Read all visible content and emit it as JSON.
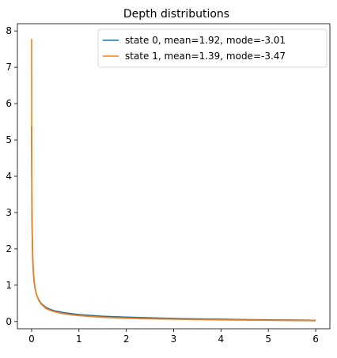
{
  "chart_data": {
    "type": "line",
    "title": "Depth distributions",
    "xlabel": "",
    "ylabel": "",
    "xlim": [
      -0.3,
      6.3
    ],
    "ylim": [
      -0.2,
      8.2
    ],
    "xticks": [
      0,
      1,
      2,
      3,
      4,
      5,
      6
    ],
    "yticks": [
      0,
      1,
      2,
      3,
      4,
      5,
      6,
      7,
      8
    ],
    "grid": false,
    "legend_position": "top-right",
    "series": [
      {
        "name": "state 0, mean=1.92, mode=-3.01",
        "color": "#1f77b4",
        "x": [
          0.0,
          0.002,
          0.005,
          0.01,
          0.02,
          0.03,
          0.05,
          0.07,
          0.1,
          0.15,
          0.2,
          0.3,
          0.4,
          0.5,
          0.7,
          1.0,
          1.5,
          2.0,
          2.5,
          3.0,
          3.5,
          4.0,
          4.5,
          5.0,
          5.5,
          6.0
        ],
        "y": [
          5.38,
          4.4,
          3.35,
          2.55,
          1.85,
          1.5,
          1.12,
          0.93,
          0.76,
          0.6,
          0.5,
          0.39,
          0.33,
          0.29,
          0.24,
          0.19,
          0.145,
          0.12,
          0.1,
          0.085,
          0.072,
          0.062,
          0.053,
          0.045,
          0.038,
          0.03
        ]
      },
      {
        "name": "state 1, mean=1.39, mode=-3.47",
        "color": "#ff7f0e",
        "x": [
          0.0,
          0.002,
          0.005,
          0.01,
          0.02,
          0.03,
          0.05,
          0.07,
          0.1,
          0.15,
          0.2,
          0.3,
          0.4,
          0.5,
          0.7,
          1.0,
          1.5,
          2.0,
          2.5,
          3.0,
          3.5,
          4.0,
          4.5,
          5.0,
          5.5,
          6.0
        ],
        "y": [
          7.78,
          5.6,
          3.95,
          2.9,
          2.05,
          1.62,
          1.18,
          0.95,
          0.76,
          0.58,
          0.48,
          0.36,
          0.3,
          0.26,
          0.205,
          0.16,
          0.115,
          0.09,
          0.074,
          0.062,
          0.052,
          0.044,
          0.037,
          0.031,
          0.025,
          0.02
        ]
      }
    ]
  }
}
